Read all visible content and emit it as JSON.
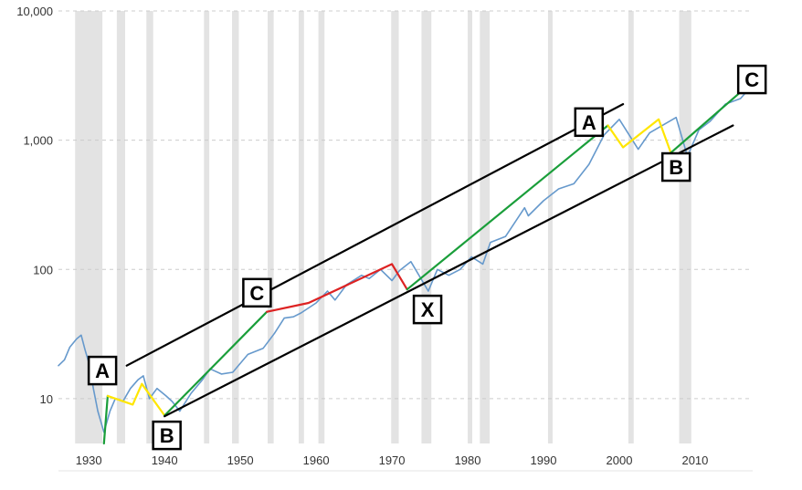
{
  "chart_data": {
    "type": "line",
    "title": "",
    "xlabel": "",
    "ylabel": "",
    "y_scale": "log",
    "ylim": [
      4.5,
      10000
    ],
    "xlim": [
      1926,
      2017.6
    ],
    "grid": "horizontal dashed",
    "y_ticks": [
      {
        "value": 10,
        "label": "10"
      },
      {
        "value": 100,
        "label": "100"
      },
      {
        "value": 1000,
        "label": "1,000"
      },
      {
        "value": 10000,
        "label": "10,000"
      }
    ],
    "x_ticks": [
      {
        "value": 1930,
        "label": "1930"
      },
      {
        "value": 1940,
        "label": "1940"
      },
      {
        "value": 1950,
        "label": "1950"
      },
      {
        "value": 1960,
        "label": "1960"
      },
      {
        "value": 1970,
        "label": "1970"
      },
      {
        "value": 1980,
        "label": "1980"
      },
      {
        "value": 1990,
        "label": "1990"
      },
      {
        "value": 2000,
        "label": "2000"
      },
      {
        "value": 2010,
        "label": "2010"
      }
    ],
    "recession_shading": [
      [
        1928.2,
        1931.8
      ],
      [
        1933.7,
        1934.8
      ],
      [
        1937.6,
        1938.5
      ],
      [
        1945.2,
        1945.9
      ],
      [
        1948.9,
        1949.8
      ],
      [
        1953.6,
        1954.4
      ],
      [
        1957.7,
        1958.4
      ],
      [
        1960.3,
        1961.1
      ],
      [
        1969.9,
        1970.9
      ],
      [
        1973.9,
        1975.2
      ],
      [
        1980.0,
        1980.6
      ],
      [
        1981.6,
        1982.9
      ],
      [
        1990.6,
        1991.2
      ],
      [
        2001.2,
        2001.9
      ],
      [
        2007.9,
        2009.5
      ]
    ],
    "series": [
      {
        "color": "#6699cc",
        "points": [
          [
            1926.0,
            18
          ],
          [
            1926.8,
            20
          ],
          [
            1927.5,
            25
          ],
          [
            1928.4,
            29
          ],
          [
            1929.0,
            31
          ],
          [
            1929.5,
            24
          ],
          [
            1930.0,
            19
          ],
          [
            1930.6,
            12
          ],
          [
            1931.2,
            8
          ],
          [
            1932.0,
            5.5
          ],
          [
            1932.8,
            8
          ],
          [
            1933.5,
            10
          ],
          [
            1934.5,
            9.5
          ],
          [
            1935.5,
            12
          ],
          [
            1936.5,
            14
          ],
          [
            1937.2,
            15
          ],
          [
            1938.0,
            10
          ],
          [
            1939.0,
            12
          ],
          [
            1940.2,
            10.5
          ],
          [
            1941.0,
            9.5
          ],
          [
            1942.0,
            8
          ],
          [
            1943.5,
            11
          ],
          [
            1945.0,
            14
          ],
          [
            1946.0,
            17
          ],
          [
            1947.5,
            15.5
          ],
          [
            1949.0,
            16
          ],
          [
            1951.0,
            22
          ],
          [
            1953.0,
            24.5
          ],
          [
            1954.5,
            32
          ],
          [
            1955.8,
            42
          ],
          [
            1957.0,
            43
          ],
          [
            1958.0,
            46
          ],
          [
            1960.0,
            55
          ],
          [
            1961.5,
            68
          ],
          [
            1962.5,
            58
          ],
          [
            1964.0,
            76
          ],
          [
            1966.0,
            90
          ],
          [
            1967.0,
            85
          ],
          [
            1968.5,
            100
          ],
          [
            1970.0,
            82
          ],
          [
            1971.0,
            98
          ],
          [
            1972.5,
            115
          ],
          [
            1974.8,
            68
          ],
          [
            1976.0,
            100
          ],
          [
            1977.5,
            90
          ],
          [
            1979.0,
            100
          ],
          [
            1980.5,
            125
          ],
          [
            1982.0,
            110
          ],
          [
            1983.0,
            162
          ],
          [
            1985.0,
            180
          ],
          [
            1987.5,
            300
          ],
          [
            1988.0,
            260
          ],
          [
            1990.0,
            340
          ],
          [
            1992.0,
            420
          ],
          [
            1994.0,
            460
          ],
          [
            1996.0,
            650
          ],
          [
            1998.0,
            1100
          ],
          [
            2000.0,
            1450
          ],
          [
            2002.5,
            850
          ],
          [
            2004.0,
            1140
          ],
          [
            2007.5,
            1500
          ],
          [
            2009.0,
            750
          ],
          [
            2010.5,
            1200
          ],
          [
            2012.0,
            1400
          ],
          [
            2014.0,
            1900
          ],
          [
            2016.0,
            2100
          ],
          [
            2017.5,
            2650
          ]
        ]
      },
      {
        "color": "#1a9e3a",
        "points": [
          [
            1932.0,
            4.5
          ],
          [
            1932.5,
            10.5
          ]
        ]
      },
      {
        "color": "#ffe600",
        "points": [
          [
            1932.5,
            10.5
          ],
          [
            1935.8,
            9.0
          ],
          [
            1937.0,
            13.0
          ],
          [
            1940.0,
            7.4
          ]
        ]
      },
      {
        "color": "#1a9e3a",
        "points": [
          [
            1940.0,
            7.4
          ],
          [
            1953.5,
            47
          ]
        ]
      },
      {
        "color": "#dd2222",
        "points": [
          [
            1953.5,
            47
          ],
          [
            1959.0,
            55
          ],
          [
            1970.0,
            110
          ],
          [
            1972.0,
            70
          ]
        ]
      },
      {
        "color": "#1a9e3a",
        "points": [
          [
            1972.0,
            70
          ],
          [
            1998.5,
            1300
          ]
        ]
      },
      {
        "color": "#ffe600",
        "points": [
          [
            1998.5,
            1300
          ],
          [
            2000.5,
            880
          ],
          [
            2005.2,
            1450
          ],
          [
            2006.8,
            800
          ]
        ]
      },
      {
        "color": "#1a9e3a",
        "points": [
          [
            2006.8,
            800
          ],
          [
            2017.0,
            2650
          ]
        ]
      },
      {
        "color": "#000000",
        "points": [
          [
            1935.0,
            18
          ],
          [
            2000.5,
            1900
          ]
        ]
      },
      {
        "color": "#000000",
        "points": [
          [
            1940.0,
            7.3
          ],
          [
            2015.0,
            1300
          ]
        ]
      }
    ],
    "annotations": [
      {
        "text": "A",
        "x": 1931.8,
        "y": 16.5
      },
      {
        "text": "B",
        "x": 1940.3,
        "y": 5.2
      },
      {
        "text": "C",
        "x": 1952.2,
        "y": 66
      },
      {
        "text": "X",
        "x": 1974.7,
        "y": 49
      },
      {
        "text": "A",
        "x": 1996.0,
        "y": 1380
      },
      {
        "text": "B",
        "x": 2007.5,
        "y": 620
      },
      {
        "text": "C",
        "x": 2017.5,
        "y": 2950
      }
    ]
  }
}
